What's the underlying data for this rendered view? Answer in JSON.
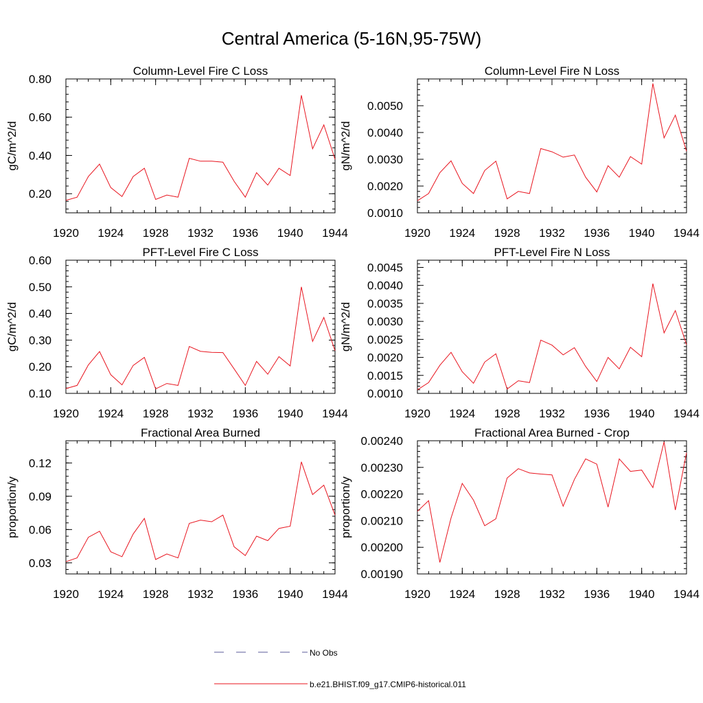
{
  "figure": {
    "title": "Central America (5-16N,95-75W)"
  },
  "legend": {
    "entries": [
      {
        "label": "No Obs",
        "color": "#5a5a9a",
        "style": "dashed"
      },
      {
        "label": "b.e21.BHIST.f09_g17.CMIP6-historical.011",
        "color": "#e8141e",
        "style": "solid"
      }
    ]
  },
  "chart_data": [
    {
      "type": "line",
      "title": "Column-Level Fire C Loss",
      "ylabel": "gC/m^2/d",
      "xlim": [
        1920,
        1944
      ],
      "ylim": [
        0.1,
        0.8
      ],
      "xticks": [
        1920,
        1924,
        1928,
        1932,
        1936,
        1940,
        1944
      ],
      "xtick_labels": [
        "1920",
        "1924",
        "1928",
        "1932",
        "1936",
        "1940",
        "1944"
      ],
      "yticks": [
        0.2,
        0.4,
        0.6,
        0.8
      ],
      "ytick_labels": [
        "0.20",
        "0.40",
        "0.60",
        "0.80"
      ],
      "series": [
        {
          "name": "b.e21.BHIST.f09_g17.CMIP6-historical.011",
          "color": "#e8141e",
          "x": [
            1920,
            1921,
            1922,
            1923,
            1924,
            1925,
            1926,
            1927,
            1928,
            1929,
            1930,
            1931,
            1932,
            1933,
            1934,
            1935,
            1936,
            1937,
            1938,
            1939,
            1940,
            1941,
            1942,
            1943,
            1944
          ],
          "values": [
            0.165,
            0.182,
            0.29,
            0.355,
            0.232,
            0.185,
            0.29,
            0.333,
            0.17,
            0.193,
            0.182,
            0.385,
            0.37,
            0.37,
            0.365,
            0.265,
            0.182,
            0.31,
            0.245,
            0.333,
            0.295,
            0.715,
            0.435,
            0.56,
            0.38
          ]
        }
      ]
    },
    {
      "type": "line",
      "title": "Column-Level Fire N Loss",
      "ylabel": "gN/m^2/d",
      "xlim": [
        1920,
        1944
      ],
      "ylim": [
        0.001,
        0.006
      ],
      "xticks": [
        1920,
        1924,
        1928,
        1932,
        1936,
        1940,
        1944
      ],
      "xtick_labels": [
        "1920",
        "1924",
        "1928",
        "1932",
        "1936",
        "1940",
        "1944"
      ],
      "yticks": [
        0.001,
        0.002,
        0.003,
        0.004,
        0.005
      ],
      "ytick_labels": [
        "0.0010",
        "0.0020",
        "0.0030",
        "0.0040",
        "0.0050"
      ],
      "series": [
        {
          "name": "b.e21.BHIST.f09_g17.CMIP6-historical.011",
          "color": "#e8141e",
          "x": [
            1920,
            1921,
            1922,
            1923,
            1924,
            1925,
            1926,
            1927,
            1928,
            1929,
            1930,
            1931,
            1932,
            1933,
            1934,
            1935,
            1936,
            1937,
            1938,
            1939,
            1940,
            1941,
            1942,
            1943,
            1944
          ],
          "values": [
            0.00145,
            0.00172,
            0.0025,
            0.00294,
            0.0021,
            0.00172,
            0.00258,
            0.00293,
            0.00152,
            0.0018,
            0.00172,
            0.0034,
            0.00328,
            0.00308,
            0.00316,
            0.00233,
            0.00178,
            0.00276,
            0.00233,
            0.0031,
            0.00282,
            0.00583,
            0.0038,
            0.00465,
            0.0033
          ]
        }
      ]
    },
    {
      "type": "line",
      "title": "PFT-Level Fire C Loss",
      "ylabel": "gC/m^2/d",
      "xlim": [
        1920,
        1944
      ],
      "ylim": [
        0.1,
        0.6
      ],
      "xticks": [
        1920,
        1924,
        1928,
        1932,
        1936,
        1940,
        1944
      ],
      "xtick_labels": [
        "1920",
        "1924",
        "1928",
        "1932",
        "1936",
        "1940",
        "1944"
      ],
      "yticks": [
        0.1,
        0.2,
        0.3,
        0.4,
        0.5,
        0.6
      ],
      "ytick_labels": [
        "0.10",
        "0.20",
        "0.30",
        "0.40",
        "0.50",
        "0.60"
      ],
      "series": [
        {
          "name": "b.e21.BHIST.f09_g17.CMIP6-historical.011",
          "color": "#e8141e",
          "x": [
            1920,
            1921,
            1922,
            1923,
            1924,
            1925,
            1926,
            1927,
            1928,
            1929,
            1930,
            1931,
            1932,
            1933,
            1934,
            1935,
            1936,
            1937,
            1938,
            1939,
            1940,
            1941,
            1942,
            1943,
            1944
          ],
          "values": [
            0.118,
            0.13,
            0.207,
            0.257,
            0.17,
            0.132,
            0.205,
            0.235,
            0.117,
            0.137,
            0.13,
            0.276,
            0.258,
            0.254,
            0.253,
            0.192,
            0.13,
            0.22,
            0.172,
            0.238,
            0.203,
            0.5,
            0.295,
            0.385,
            0.26
          ]
        }
      ]
    },
    {
      "type": "line",
      "title": "PFT-Level Fire N Loss",
      "ylabel": "gN/m^2/d",
      "xlim": [
        1920,
        1944
      ],
      "ylim": [
        0.001,
        0.0047
      ],
      "xticks": [
        1920,
        1924,
        1928,
        1932,
        1936,
        1940,
        1944
      ],
      "xtick_labels": [
        "1920",
        "1924",
        "1928",
        "1932",
        "1936",
        "1940",
        "1944"
      ],
      "yticks": [
        0.001,
        0.0015,
        0.002,
        0.0025,
        0.003,
        0.0035,
        0.004,
        0.0045
      ],
      "ytick_labels": [
        "0.0010",
        "0.0015",
        "0.0020",
        "0.0025",
        "0.0030",
        "0.0035",
        "0.0040",
        "0.0045"
      ],
      "series": [
        {
          "name": "b.e21.BHIST.f09_g17.CMIP6-historical.011",
          "color": "#e8141e",
          "x": [
            1920,
            1921,
            1922,
            1923,
            1924,
            1925,
            1926,
            1927,
            1928,
            1929,
            1930,
            1931,
            1932,
            1933,
            1934,
            1935,
            1936,
            1937,
            1938,
            1939,
            1940,
            1941,
            1942,
            1943,
            1944
          ],
          "values": [
            0.0011,
            0.0013,
            0.00178,
            0.00214,
            0.0016,
            0.00128,
            0.00187,
            0.0021,
            0.00112,
            0.00135,
            0.0013,
            0.00248,
            0.00234,
            0.00207,
            0.00227,
            0.00175,
            0.00133,
            0.002,
            0.00168,
            0.00228,
            0.00202,
            0.00405,
            0.00268,
            0.0033,
            0.00235
          ]
        }
      ]
    },
    {
      "type": "line",
      "title": "Fractional Area Burned",
      "ylabel": "proportion/y",
      "xlim": [
        1920,
        1944
      ],
      "ylim": [
        0.02,
        0.14
      ],
      "xticks": [
        1920,
        1924,
        1928,
        1932,
        1936,
        1940,
        1944
      ],
      "xtick_labels": [
        "1920",
        "1924",
        "1928",
        "1932",
        "1936",
        "1940",
        "1944"
      ],
      "yticks": [
        0.03,
        0.06,
        0.09,
        0.12
      ],
      "ytick_labels": [
        "0.03",
        "0.06",
        "0.09",
        "0.12"
      ],
      "series": [
        {
          "name": "b.e21.BHIST.f09_g17.CMIP6-historical.011",
          "color": "#e8141e",
          "x": [
            1920,
            1921,
            1922,
            1923,
            1924,
            1925,
            1926,
            1927,
            1928,
            1929,
            1930,
            1931,
            1932,
            1933,
            1934,
            1935,
            1936,
            1937,
            1938,
            1939,
            1940,
            1941,
            1942,
            1943,
            1944
          ],
          "values": [
            0.031,
            0.0345,
            0.053,
            0.0585,
            0.04,
            0.0355,
            0.056,
            0.07,
            0.033,
            0.038,
            0.0345,
            0.0655,
            0.0685,
            0.067,
            0.073,
            0.0445,
            0.0365,
            0.054,
            0.05,
            0.061,
            0.063,
            0.121,
            0.0915,
            0.1,
            0.073
          ]
        }
      ]
    },
    {
      "type": "line",
      "title": "Fractional Area Burned - Crop",
      "ylabel": "proportion/y",
      "xlim": [
        1920,
        1944
      ],
      "ylim": [
        0.0019,
        0.0024
      ],
      "xticks": [
        1920,
        1924,
        1928,
        1932,
        1936,
        1940,
        1944
      ],
      "xtick_labels": [
        "1920",
        "1924",
        "1928",
        "1932",
        "1936",
        "1940",
        "1944"
      ],
      "yticks": [
        0.0019,
        0.002,
        0.0021,
        0.0022,
        0.0023,
        0.0024
      ],
      "ytick_labels": [
        "0.00190",
        "0.00200",
        "0.00210",
        "0.00220",
        "0.00230",
        "0.00240"
      ],
      "series": [
        {
          "name": "b.e21.BHIST.f09_g17.CMIP6-historical.011",
          "color": "#e8141e",
          "x": [
            1920,
            1921,
            1922,
            1923,
            1924,
            1925,
            1926,
            1927,
            1928,
            1929,
            1930,
            1931,
            1932,
            1933,
            1934,
            1935,
            1936,
            1937,
            1938,
            1939,
            1940,
            1941,
            1942,
            1943,
            1944
          ],
          "values": [
            0.002135,
            0.002175,
            0.001943,
            0.00211,
            0.00224,
            0.002177,
            0.002081,
            0.002107,
            0.00226,
            0.002295,
            0.002279,
            0.002275,
            0.002272,
            0.002154,
            0.002255,
            0.002332,
            0.002312,
            0.002151,
            0.002332,
            0.002285,
            0.00229,
            0.002224,
            0.002396,
            0.00214,
            0.002355
          ]
        }
      ]
    }
  ]
}
